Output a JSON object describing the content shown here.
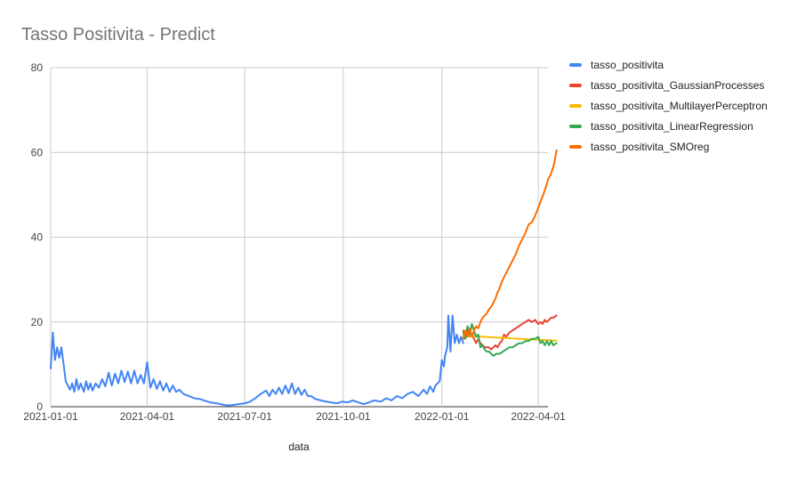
{
  "chart_data": {
    "type": "line",
    "title": "Tasso Positivita - Predict",
    "xlabel": "data",
    "ylabel": "",
    "ylim": [
      0,
      80
    ],
    "yticks": [
      0,
      20,
      40,
      60,
      80
    ],
    "xlim": [
      "2021-01-01",
      "2022-04-10"
    ],
    "xticks": [
      "2021-01-01",
      "2021-04-01",
      "2021-07-01",
      "2021-10-01",
      "2022-01-01",
      "2022-04-01"
    ],
    "grid": true,
    "legend": "right",
    "series": [
      {
        "name": "tasso_positivita",
        "color": "#4285F4",
        "x": [
          "2021-01-01",
          "2021-01-03",
          "2021-01-05",
          "2021-01-07",
          "2021-01-09",
          "2021-01-11",
          "2021-01-13",
          "2021-01-15",
          "2021-01-17",
          "2021-01-19",
          "2021-01-21",
          "2021-01-23",
          "2021-01-25",
          "2021-01-27",
          "2021-01-29",
          "2021-02-01",
          "2021-02-03",
          "2021-02-05",
          "2021-02-07",
          "2021-02-09",
          "2021-02-12",
          "2021-02-15",
          "2021-02-18",
          "2021-02-21",
          "2021-02-24",
          "2021-02-27",
          "2021-03-02",
          "2021-03-05",
          "2021-03-08",
          "2021-03-11",
          "2021-03-14",
          "2021-03-17",
          "2021-03-20",
          "2021-03-23",
          "2021-03-26",
          "2021-03-29",
          "2021-04-01",
          "2021-04-04",
          "2021-04-07",
          "2021-04-10",
          "2021-04-13",
          "2021-04-16",
          "2021-04-19",
          "2021-04-22",
          "2021-04-25",
          "2021-04-28",
          "2021-05-01",
          "2021-05-05",
          "2021-05-10",
          "2021-05-15",
          "2021-05-20",
          "2021-05-25",
          "2021-05-30",
          "2021-06-05",
          "2021-06-10",
          "2021-06-15",
          "2021-06-20",
          "2021-06-25",
          "2021-07-01",
          "2021-07-06",
          "2021-07-11",
          "2021-07-16",
          "2021-07-21",
          "2021-07-24",
          "2021-07-27",
          "2021-07-30",
          "2021-08-02",
          "2021-08-05",
          "2021-08-08",
          "2021-08-11",
          "2021-08-14",
          "2021-08-17",
          "2021-08-20",
          "2021-08-23",
          "2021-08-26",
          "2021-08-29",
          "2021-09-01",
          "2021-09-05",
          "2021-09-10",
          "2021-09-15",
          "2021-09-20",
          "2021-09-25",
          "2021-09-30",
          "2021-10-05",
          "2021-10-10",
          "2021-10-15",
          "2021-10-20",
          "2021-10-25",
          "2021-10-30",
          "2021-11-05",
          "2021-11-10",
          "2021-11-15",
          "2021-11-20",
          "2021-11-25",
          "2021-11-30",
          "2021-12-05",
          "2021-12-10",
          "2021-12-15",
          "2021-12-18",
          "2021-12-21",
          "2021-12-24",
          "2021-12-26",
          "2021-12-28",
          "2021-12-30",
          "2022-01-01",
          "2022-01-03",
          "2022-01-04",
          "2022-01-06",
          "2022-01-07",
          "2022-01-09",
          "2022-01-11",
          "2022-01-13",
          "2022-01-15",
          "2022-01-17",
          "2022-01-19",
          "2022-01-21"
        ],
        "values": [
          9,
          17.5,
          11,
          14,
          11.5,
          14,
          10,
          6,
          5,
          4,
          5.5,
          3.5,
          6.5,
          4,
          5.5,
          3.5,
          6,
          4,
          5.5,
          3.8,
          5.5,
          4.5,
          6.5,
          4.8,
          8,
          5,
          7.8,
          5.5,
          8.5,
          5.8,
          8.3,
          5.5,
          8.5,
          5.5,
          7.5,
          5.5,
          10.5,
          4.5,
          6.5,
          4.2,
          6,
          3.8,
          5.5,
          3.5,
          5,
          3.5,
          4,
          3,
          2.5,
          2,
          1.8,
          1.4,
          1,
          0.8,
          0.5,
          0.3,
          0.4,
          0.6,
          0.8,
          1.2,
          2,
          3,
          3.8,
          2.5,
          4,
          3,
          4.5,
          3,
          5,
          3.2,
          5.5,
          3,
          4.5,
          2.8,
          4,
          2.5,
          2.5,
          1.8,
          1.5,
          1.2,
          1,
          0.8,
          1.2,
          1,
          1.5,
          1,
          0.6,
          1,
          1.5,
          1.2,
          2,
          1.5,
          2.5,
          2,
          3,
          3.5,
          2.5,
          4,
          3,
          4.8,
          3.5,
          5,
          5.5,
          6,
          11,
          9.5,
          12,
          14,
          21.5,
          13,
          21.5,
          15,
          17,
          15,
          16.5,
          15
        ]
      },
      {
        "name": "tasso_positivita_GaussianProcesses",
        "color": "#EA4335",
        "x": [
          "2022-01-21",
          "2022-01-23",
          "2022-01-25",
          "2022-01-27",
          "2022-01-29",
          "2022-01-31",
          "2022-02-02",
          "2022-02-04",
          "2022-02-06",
          "2022-02-08",
          "2022-02-10",
          "2022-02-12",
          "2022-02-14",
          "2022-02-16",
          "2022-02-18",
          "2022-02-20",
          "2022-02-22",
          "2022-02-24",
          "2022-02-26",
          "2022-02-28",
          "2022-03-02",
          "2022-03-05",
          "2022-03-08",
          "2022-03-11",
          "2022-03-14",
          "2022-03-17",
          "2022-03-20",
          "2022-03-23",
          "2022-03-26",
          "2022-03-29",
          "2022-04-01",
          "2022-04-03",
          "2022-04-05",
          "2022-04-07",
          "2022-04-09",
          "2022-04-11",
          "2022-04-13",
          "2022-04-15",
          "2022-04-18"
        ],
        "values": [
          18,
          17,
          18,
          16.5,
          17,
          16,
          15,
          16,
          15,
          14.5,
          14,
          14,
          14,
          13.5,
          14,
          14.5,
          14,
          15,
          15.5,
          17,
          16.5,
          17.5,
          18,
          18.5,
          19,
          19.5,
          20,
          20.5,
          20,
          20.5,
          19.5,
          20,
          19.5,
          20.5,
          20,
          20.5,
          21,
          21,
          21.5
        ]
      },
      {
        "name": "tasso_positivita_MultilayerPerceptron",
        "color": "#FBBC04",
        "x": [
          "2022-01-21",
          "2022-02-01",
          "2022-02-15",
          "2022-03-01",
          "2022-03-15",
          "2022-04-01",
          "2022-04-18"
        ],
        "values": [
          16.8,
          16.6,
          16.4,
          16.2,
          16,
          15.8,
          15.6
        ]
      },
      {
        "name": "tasso_positivita_LinearRegression",
        "color": "#34A853",
        "x": [
          "2022-01-21",
          "2022-01-23",
          "2022-01-25",
          "2022-01-27",
          "2022-01-29",
          "2022-01-31",
          "2022-02-02",
          "2022-02-04",
          "2022-02-06",
          "2022-02-08",
          "2022-02-10",
          "2022-02-12",
          "2022-02-14",
          "2022-02-16",
          "2022-02-18",
          "2022-02-21",
          "2022-02-24",
          "2022-02-27",
          "2022-03-02",
          "2022-03-05",
          "2022-03-08",
          "2022-03-11",
          "2022-03-14",
          "2022-03-17",
          "2022-03-20",
          "2022-03-23",
          "2022-03-26",
          "2022-03-29",
          "2022-04-01",
          "2022-04-03",
          "2022-04-05",
          "2022-04-07",
          "2022-04-09",
          "2022-04-11",
          "2022-04-13",
          "2022-04-15",
          "2022-04-18"
        ],
        "values": [
          17.5,
          16,
          19,
          17,
          19.5,
          18,
          16.5,
          17,
          14,
          14.5,
          13.5,
          13,
          13,
          12.5,
          12,
          12.5,
          12.5,
          13,
          13.5,
          14,
          14,
          14.5,
          15,
          15,
          15.5,
          15.5,
          16,
          16,
          16.5,
          15,
          15.5,
          14.5,
          15.5,
          14.5,
          15.5,
          14.5,
          15
        ]
      },
      {
        "name": "tasso_positivita_SMOreg",
        "color": "#FF6D01",
        "x": [
          "2022-01-21",
          "2022-01-23",
          "2022-01-25",
          "2022-01-27",
          "2022-01-29",
          "2022-01-31",
          "2022-02-02",
          "2022-02-04",
          "2022-02-06",
          "2022-02-08",
          "2022-02-10",
          "2022-02-12",
          "2022-02-14",
          "2022-02-16",
          "2022-02-18",
          "2022-02-20",
          "2022-02-22",
          "2022-02-24",
          "2022-02-26",
          "2022-02-28",
          "2022-03-02",
          "2022-03-05",
          "2022-03-08",
          "2022-03-11",
          "2022-03-14",
          "2022-03-17",
          "2022-03-20",
          "2022-03-23",
          "2022-03-26",
          "2022-03-29",
          "2022-04-01",
          "2022-04-04",
          "2022-04-07",
          "2022-04-10",
          "2022-04-13",
          "2022-04-16",
          "2022-04-18"
        ],
        "values": [
          16,
          18,
          16.5,
          18.5,
          16.5,
          18,
          19,
          18.5,
          20,
          21,
          21.5,
          22,
          23,
          23.5,
          24.5,
          25.5,
          27,
          28,
          29.5,
          30.5,
          31.5,
          33,
          34.5,
          36,
          38,
          39.5,
          41,
          43,
          43.5,
          45,
          47,
          49,
          51,
          53.5,
          55,
          57.5,
          60.5
        ]
      }
    ]
  }
}
